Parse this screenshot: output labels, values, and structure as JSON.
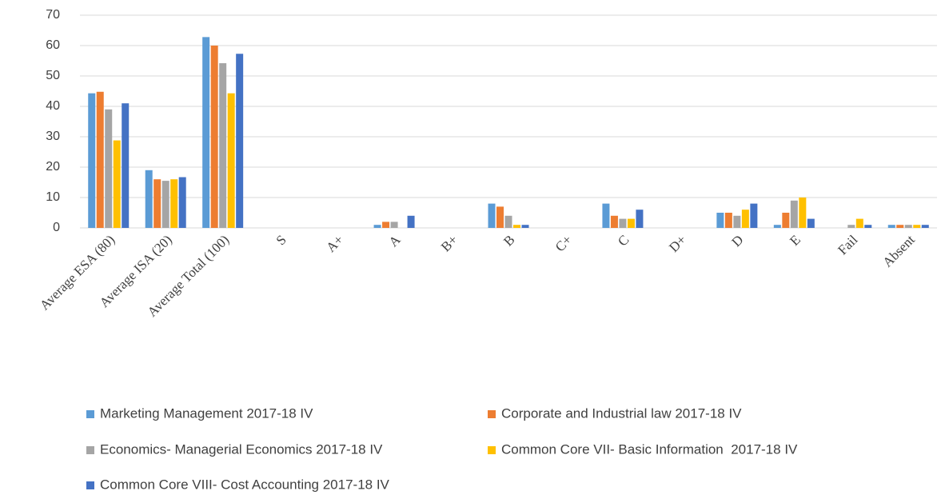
{
  "chart_data": {
    "type": "bar",
    "categories": [
      "Average ESA (80)",
      "Average ISA (20)",
      "Average Total (100)",
      "S",
      "A+",
      "A",
      "B+",
      "B",
      "C+",
      "C",
      "D+",
      "D",
      "E",
      "Fail",
      "Absent"
    ],
    "series": [
      {
        "name": "Marketing Management 2017-18 IV",
        "color": "#5b9bd5",
        "values": [
          44.3,
          19,
          62.8,
          0,
          0,
          1,
          0,
          8,
          0,
          8,
          0,
          5,
          1,
          0,
          1
        ]
      },
      {
        "name": "Corporate and Industrial law 2017-18 IV",
        "color": "#ed7d31",
        "values": [
          44.8,
          16,
          60,
          0,
          0,
          2,
          0,
          7,
          0,
          4,
          0,
          5,
          5,
          0,
          1
        ]
      },
      {
        "name": "Economics- Managerial Economics 2017-18 IV",
        "color": "#a5a5a5",
        "values": [
          39,
          15.5,
          54.2,
          0,
          0,
          2,
          0,
          4,
          0,
          3,
          0,
          4,
          9,
          1,
          1
        ]
      },
      {
        "name": "Common Core VII- Basic Information  2017-18 IV",
        "color": "#ffc000",
        "values": [
          28.8,
          16,
          44.3,
          0,
          0,
          0,
          0,
          1,
          0,
          3,
          0,
          6,
          10,
          3,
          1
        ]
      },
      {
        "name": "Common Core VIII- Cost Accounting 2017-18 IV",
        "color": "#4472c4",
        "values": [
          41,
          16.7,
          57.3,
          0,
          0,
          4,
          0,
          1,
          0,
          6,
          0,
          8,
          3,
          1,
          1
        ]
      }
    ],
    "ylim": [
      0,
      70
    ],
    "yticks": [
      0,
      10,
      20,
      30,
      40,
      50,
      60,
      70
    ],
    "grid": true,
    "legend": "bottom"
  }
}
